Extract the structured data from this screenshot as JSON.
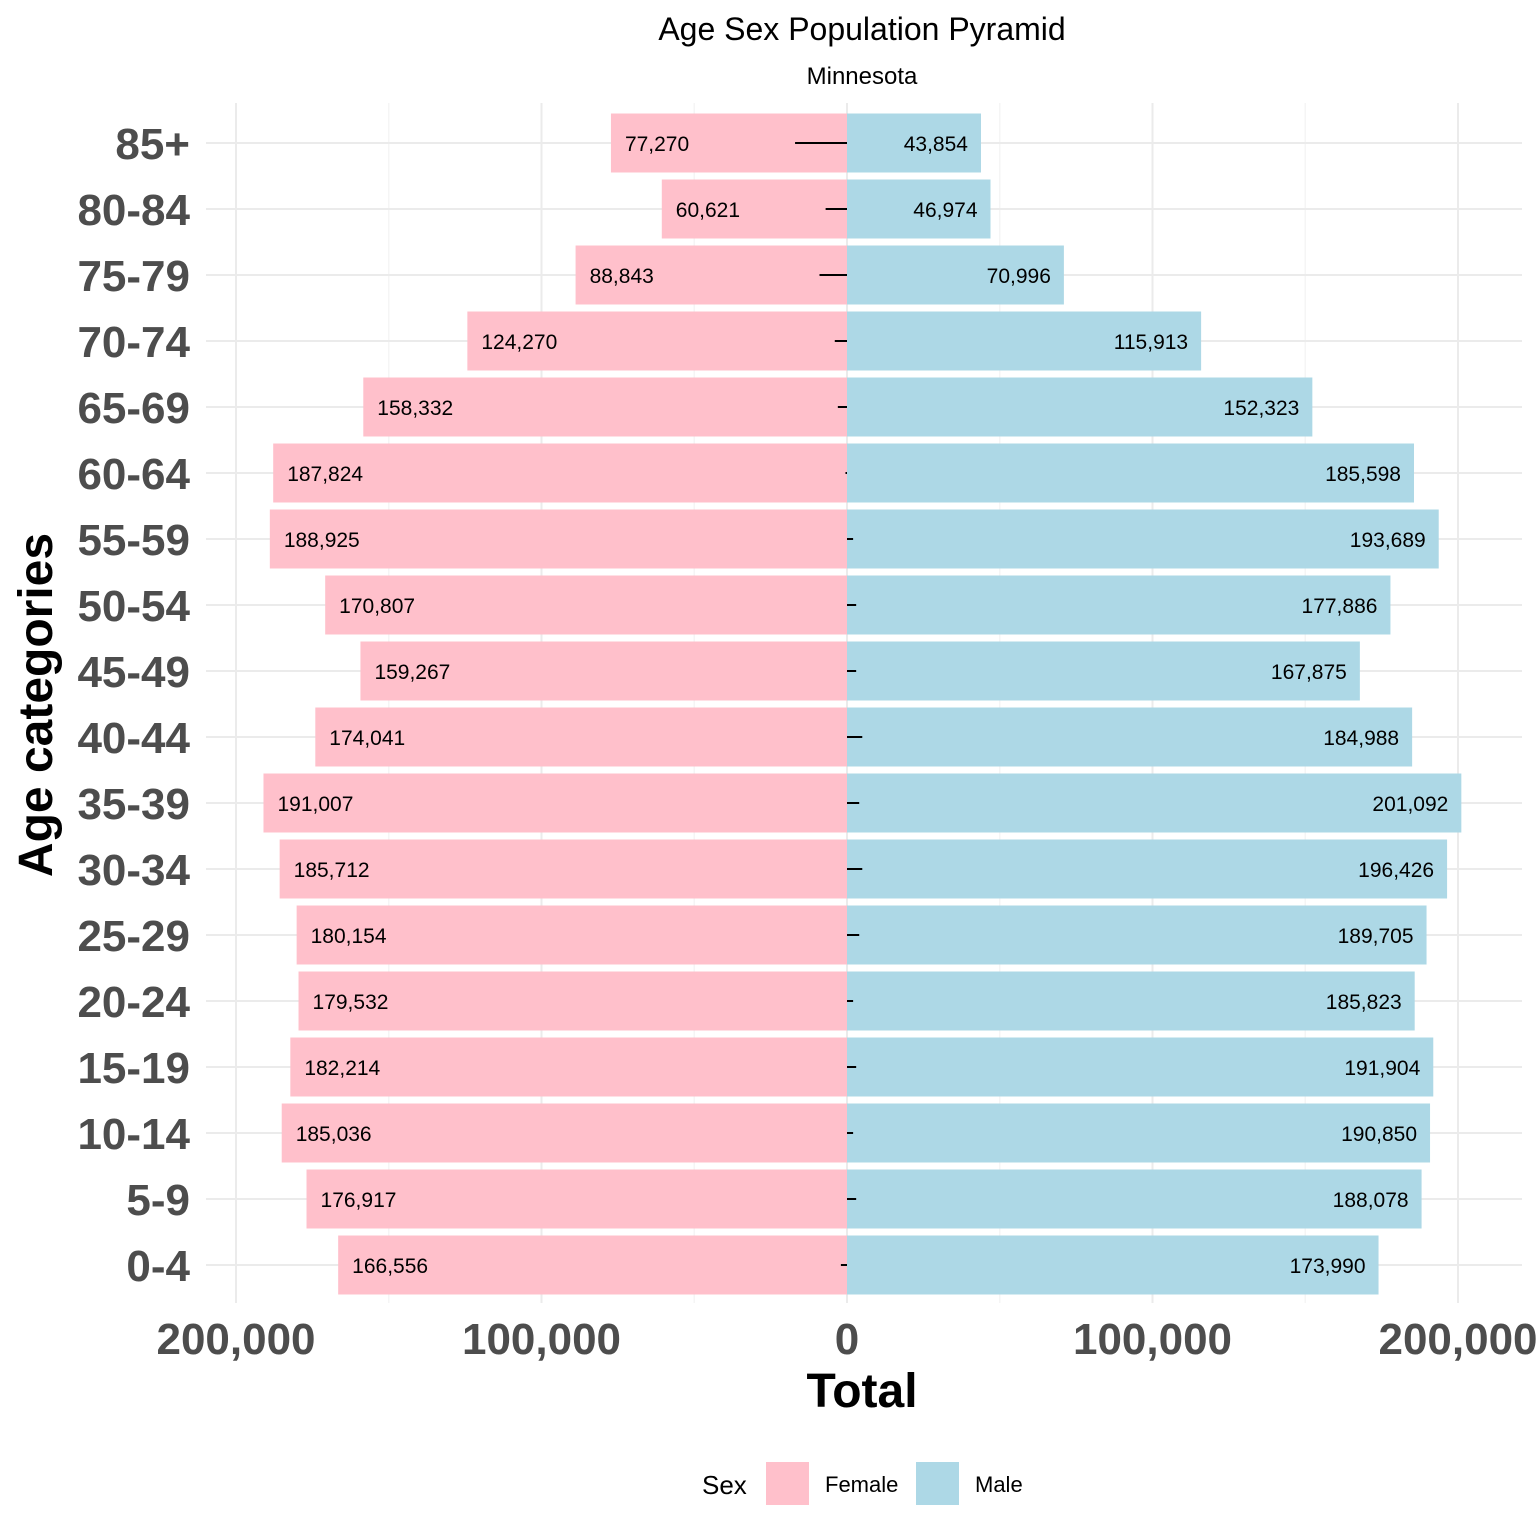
{
  "chart_data": {
    "type": "bar",
    "orientation": "horizontal",
    "title": "Age Sex Population Pyramid",
    "subtitle": "Minnesota",
    "xlabel": "Total",
    "ylabel": "Age categories",
    "xlim": [
      -200000,
      220000
    ],
    "x_ticks": [
      -200000,
      -100000,
      0,
      100000,
      200000
    ],
    "x_tick_labels": [
      "200,000",
      "100,000",
      "0",
      "100,000",
      "200,000"
    ],
    "categories": [
      "0-4",
      "5-9",
      "10-14",
      "15-19",
      "20-24",
      "25-29",
      "30-34",
      "35-39",
      "40-44",
      "45-49",
      "50-54",
      "55-59",
      "60-64",
      "65-69",
      "70-74",
      "75-79",
      "80-84",
      "85+"
    ],
    "series": [
      {
        "name": "Female",
        "color": "#ffc0cb",
        "values": [
          166556,
          176917,
          185036,
          182214,
          179532,
          180154,
          185712,
          191007,
          174041,
          159267,
          170807,
          188925,
          187824,
          158332,
          124270,
          88843,
          60621,
          77270
        ],
        "labels": [
          "166,556",
          "176,917",
          "185,036",
          "182,214",
          "179,532",
          "180,154",
          "185,712",
          "191,007",
          "174,041",
          "159,267",
          "170,807",
          "188,925",
          "187,824",
          "158,332",
          "124,270",
          "88,843",
          "60,621",
          "77,270"
        ]
      },
      {
        "name": "Male",
        "color": "#add8e6",
        "values": [
          173990,
          188078,
          190850,
          191904,
          185823,
          189705,
          196426,
          201092,
          184988,
          167875,
          177886,
          193689,
          185598,
          152323,
          115913,
          70996,
          46974,
          43854
        ],
        "labels": [
          "173,990",
          "188,078",
          "190,850",
          "191,904",
          "185,823",
          "189,705",
          "196,426",
          "201,092",
          "184,988",
          "167,875",
          "177,886",
          "193,689",
          "185,598",
          "152,323",
          "115,913",
          "70,996",
          "46,974",
          "43,854"
        ]
      }
    ],
    "difference_segments": [
      -2000,
      3000,
      2000,
      3000,
      2000,
      4000,
      5000,
      4000,
      5000,
      3000,
      3000,
      2000,
      -500,
      -3000,
      -4000,
      -9000,
      -7000,
      -17000
    ],
    "grid": true,
    "legend": {
      "position": "bottom",
      "title": "Sex",
      "entries": [
        "Female",
        "Male"
      ]
    }
  }
}
